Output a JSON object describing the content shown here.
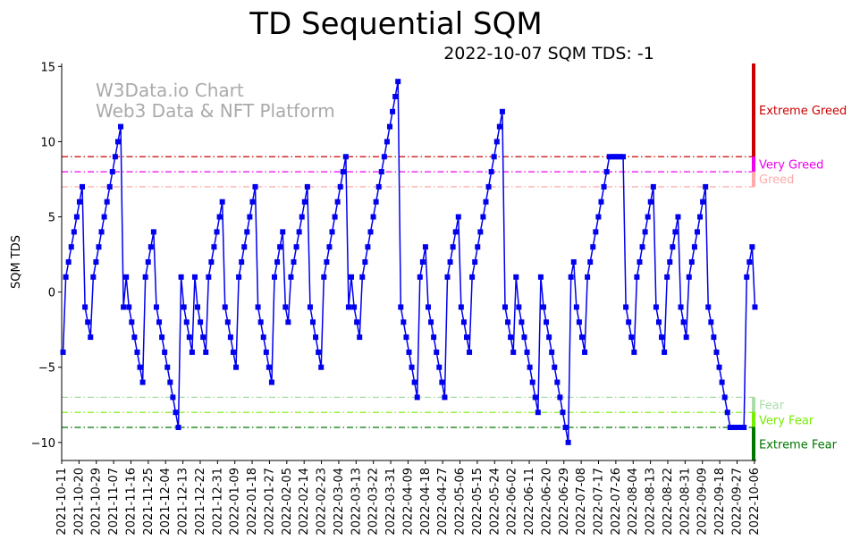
{
  "chart_data": {
    "type": "line",
    "title": "TD Sequential SQM",
    "subtitle": "2022-10-07 SQM TDS: -1",
    "xlabel": "",
    "ylabel": "SQM TDS",
    "ylim": [
      -11.2,
      15.2
    ],
    "yticks": [
      -10,
      -5,
      0,
      5,
      10,
      15
    ],
    "ytick_labels": [
      "−10",
      "−5",
      "0",
      "5",
      "10",
      "15"
    ],
    "x_start": "2021-10-11",
    "x_end": "2022-10-07",
    "xtick_labels": [
      "2021-10-11",
      "2021-10-20",
      "2021-10-29",
      "2021-11-07",
      "2021-11-16",
      "2021-11-25",
      "2021-12-04",
      "2021-12-13",
      "2021-12-22",
      "2021-12-31",
      "2022-01-09",
      "2022-01-18",
      "2022-01-27",
      "2022-02-05",
      "2022-02-14",
      "2022-02-23",
      "2022-03-04",
      "2022-03-13",
      "2022-03-22",
      "2022-03-31",
      "2022-04-09",
      "2022-04-18",
      "2022-04-27",
      "2022-05-06",
      "2022-05-15",
      "2022-05-24",
      "2022-06-02",
      "2022-06-11",
      "2022-06-20",
      "2022-06-29",
      "2022-07-08",
      "2022-07-17",
      "2022-07-26",
      "2022-08-04",
      "2022-08-13",
      "2022-08-22",
      "2022-08-31",
      "2022-09-09",
      "2022-09-18",
      "2022-09-27",
      "2022-10-06"
    ],
    "grid": false,
    "series": [
      {
        "color": "#0000ee",
        "marker": "square",
        "values": [
          -4,
          1,
          2,
          3,
          4,
          5,
          6,
          7,
          -1,
          -2,
          -3,
          1,
          2,
          3,
          4,
          5,
          6,
          7,
          8,
          9,
          10,
          11,
          -1,
          1,
          -1,
          -2,
          -3,
          -4,
          -5,
          -6,
          1,
          2,
          3,
          4,
          -1,
          -2,
          -3,
          -4,
          -5,
          -6,
          -7,
          -8,
          -9,
          1,
          -1,
          -2,
          -3,
          -4,
          1,
          -1,
          -2,
          -3,
          -4,
          1,
          2,
          3,
          4,
          5,
          6,
          -1,
          -2,
          -3,
          -4,
          -5,
          1,
          2,
          3,
          4,
          5,
          6,
          7,
          -1,
          -2,
          -3,
          -4,
          -5,
          -6,
          1,
          2,
          3,
          4,
          -1,
          -2,
          1,
          2,
          3,
          4,
          5,
          6,
          7,
          -1,
          -2,
          -3,
          -4,
          -5,
          1,
          2,
          3,
          4,
          5,
          6,
          7,
          8,
          9,
          -1,
          1,
          -1,
          -2,
          -3,
          1,
          2,
          3,
          4,
          5,
          6,
          7,
          8,
          9,
          10,
          11,
          12,
          13,
          14,
          -1,
          -2,
          -3,
          -4,
          -5,
          -6,
          -7,
          1,
          2,
          3,
          -1,
          -2,
          -3,
          -4,
          -5,
          -6,
          -7,
          1,
          2,
          3,
          4,
          5,
          -1,
          -2,
          -3,
          -4,
          1,
          2,
          3,
          4,
          5,
          6,
          7,
          8,
          9,
          10,
          11,
          12,
          -1,
          -2,
          -3,
          -4,
          1,
          -1,
          -2,
          -3,
          -4,
          -5,
          -6,
          -7,
          -8,
          1,
          -1,
          -2,
          -3,
          -4,
          -5,
          -6,
          -7,
          -8,
          -9,
          -10,
          1,
          2,
          -1,
          -2,
          -3,
          -4,
          1,
          2,
          3,
          4,
          5,
          6,
          7,
          8,
          9,
          9,
          9,
          9,
          9,
          9,
          -1,
          -2,
          -3,
          -4,
          1,
          2,
          3,
          4,
          5,
          6,
          7,
          -1,
          -2,
          -3,
          -4,
          1,
          2,
          3,
          4,
          5,
          -1,
          -2,
          -3,
          1,
          2,
          3,
          4,
          5,
          6,
          7,
          -1,
          -2,
          -3,
          -4,
          -5,
          -6,
          -7,
          -8,
          -9,
          -9,
          -9,
          -9,
          -9,
          -9,
          1,
          2,
          3,
          -1
        ]
      }
    ],
    "thresholds": [
      {
        "label": "Extreme Greed",
        "value": 9,
        "color": "#cc0000",
        "bar_from": 9,
        "bar_to": 15.2
      },
      {
        "label": "Very Greed",
        "value": 8,
        "color": "#ee00ee",
        "bar_from": 8,
        "bar_to": 9
      },
      {
        "label": "Greed",
        "value": 7,
        "color": "#ffaaaa",
        "bar_from": 7,
        "bar_to": 8
      },
      {
        "label": "Fear",
        "value": -7,
        "color": "#aaddaa",
        "bar_from": -8,
        "bar_to": -7
      },
      {
        "label": "Very Fear",
        "value": -8,
        "color": "#77ee00",
        "bar_from": -9,
        "bar_to": -8
      },
      {
        "label": "Extreme Fear",
        "value": -9,
        "color": "#007700",
        "bar_from": -11.2,
        "bar_to": -9
      }
    ],
    "watermark": [
      "W3Data.io Chart",
      "Web3 Data & NFT Platform"
    ]
  }
}
